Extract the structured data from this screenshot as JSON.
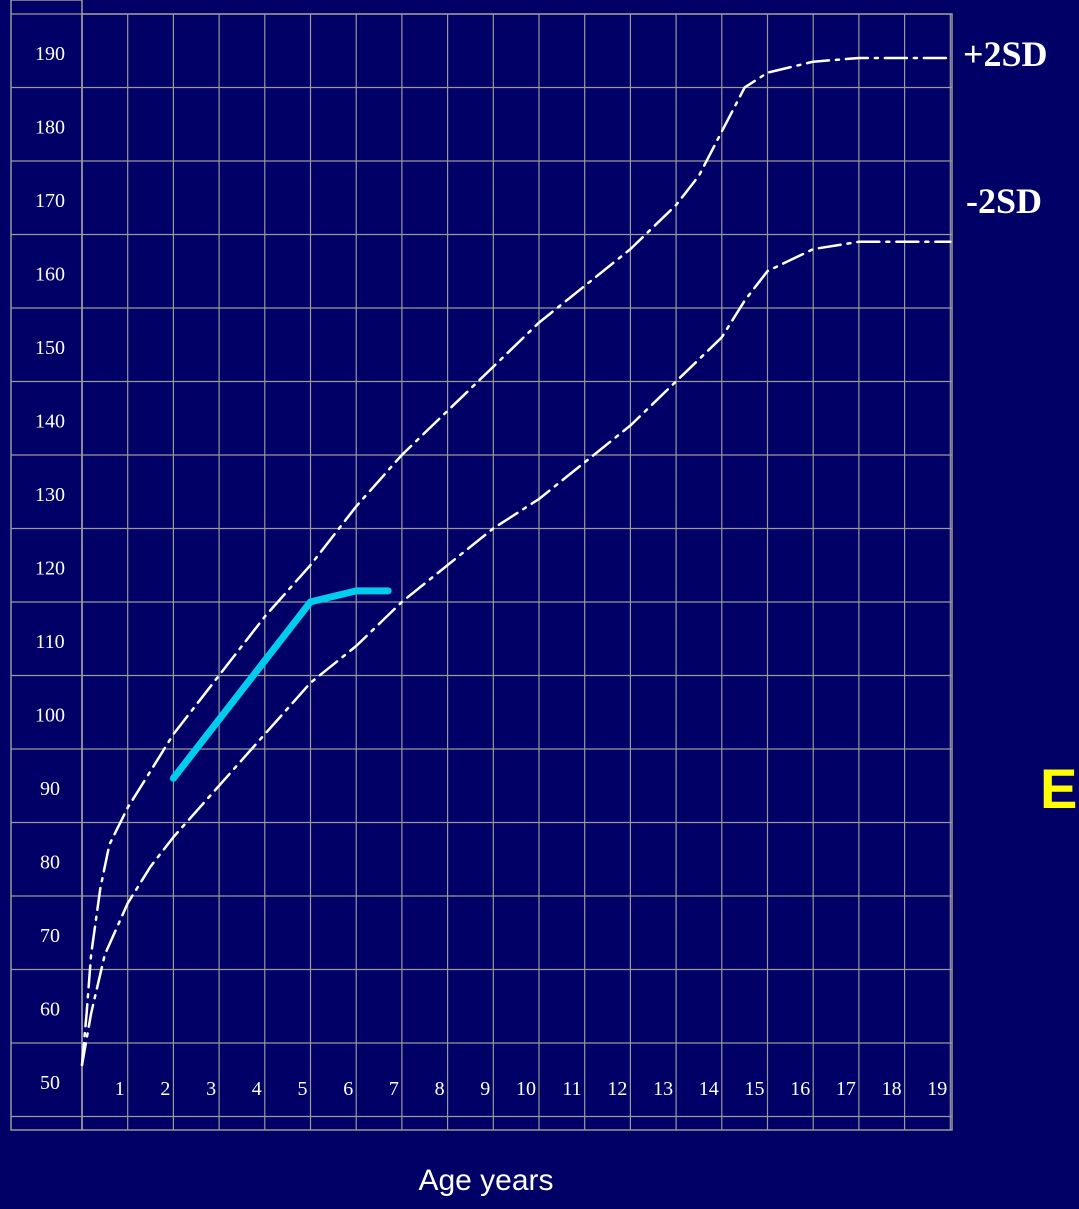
{
  "chart_data": {
    "type": "line",
    "title": "",
    "xlabel": "Age years",
    "ylabel": "",
    "xlim": [
      0,
      19
    ],
    "ylim": [
      50,
      190
    ],
    "x_ticks": [
      "1",
      "2",
      "3",
      "4",
      "5",
      "6",
      "7",
      "8",
      "9",
      "10",
      "11",
      "12",
      "13",
      "14",
      "15",
      "16",
      "17",
      "18",
      "19"
    ],
    "y_ticks": [
      "50",
      "60",
      "70",
      "80",
      "90",
      "100",
      "110",
      "120",
      "130",
      "140",
      "150",
      "160",
      "170",
      "180",
      "190"
    ],
    "grid": true,
    "series": [
      {
        "name": "+2SD",
        "style": "dash-dot",
        "color": "#ffffff",
        "points": [
          [
            0,
            53
          ],
          [
            0.1,
            60
          ],
          [
            0.2,
            68
          ],
          [
            0.4,
            77
          ],
          [
            0.6,
            83
          ],
          [
            1,
            88
          ],
          [
            1.5,
            93
          ],
          [
            2,
            98
          ],
          [
            3,
            106
          ],
          [
            4,
            114
          ],
          [
            5,
            121
          ],
          [
            6,
            129
          ],
          [
            7,
            136
          ],
          [
            8,
            142
          ],
          [
            9,
            148
          ],
          [
            10,
            154
          ],
          [
            11,
            159
          ],
          [
            12,
            164
          ],
          [
            13,
            170
          ],
          [
            13.5,
            174
          ],
          [
            14,
            180
          ],
          [
            14.5,
            186
          ],
          [
            15,
            188
          ],
          [
            16,
            189.5
          ],
          [
            17,
            190
          ],
          [
            18,
            190
          ],
          [
            19,
            190
          ]
        ]
      },
      {
        "name": "-2SD",
        "style": "dash-dot",
        "color": "#ffffff",
        "points": [
          [
            0,
            53
          ],
          [
            0.2,
            60
          ],
          [
            0.5,
            68
          ],
          [
            1,
            75
          ],
          [
            1.5,
            80
          ],
          [
            2,
            84
          ],
          [
            3,
            91
          ],
          [
            4,
            98
          ],
          [
            5,
            105
          ],
          [
            6,
            110
          ],
          [
            7,
            116
          ],
          [
            8,
            121
          ],
          [
            9,
            126
          ],
          [
            10,
            130
          ],
          [
            11,
            135
          ],
          [
            12,
            140
          ],
          [
            13,
            146
          ],
          [
            14,
            152
          ],
          [
            14.5,
            157
          ],
          [
            15,
            161
          ],
          [
            16,
            164
          ],
          [
            17,
            165
          ],
          [
            18,
            165
          ],
          [
            19,
            165
          ]
        ]
      },
      {
        "name": "",
        "style": "solid",
        "color": "#00ccee",
        "points": [
          [
            2,
            92
          ],
          [
            3,
            100
          ],
          [
            4,
            108
          ],
          [
            5,
            116
          ],
          [
            6,
            117.5
          ],
          [
            6.7,
            117.5
          ]
        ]
      }
    ],
    "series_labels": [
      "+2SD",
      "-2SD"
    ],
    "extra_text": "E"
  }
}
